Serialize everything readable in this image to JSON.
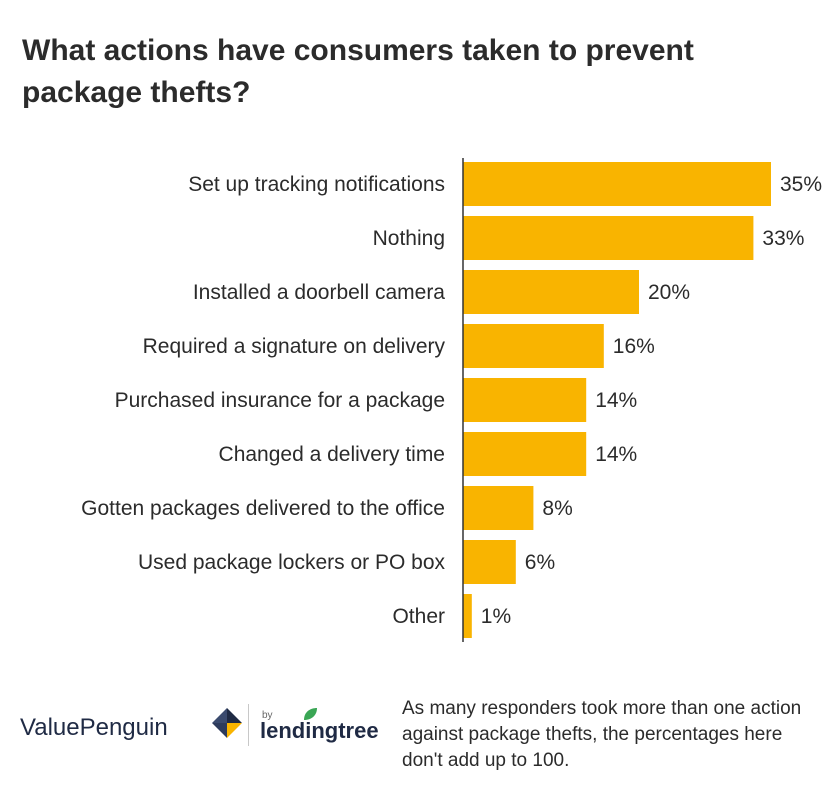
{
  "title": "What actions have consumers taken to prevent package thefts?",
  "note": "As many responders took more than one action against package thefts, the percentages here don't add up to 100.",
  "logo": {
    "valuepenguin": "ValuePenguin",
    "by": "by",
    "lendingtree": "lendingtree"
  },
  "colors": {
    "bar": "#F9B400",
    "axis": "#333333",
    "text": "#2b2b2b"
  },
  "chart_data": {
    "type": "bar",
    "orientation": "horizontal",
    "title": "What actions have consumers taken to prevent package thefts?",
    "categories": [
      "Set up tracking notifications",
      "Nothing",
      "Installed a doorbell camera",
      "Required a signature on delivery",
      "Purchased insurance for a package",
      "Changed a delivery time",
      "Gotten packages delivered to the office",
      "Used package lockers or PO box",
      "Other"
    ],
    "values": [
      35,
      33,
      20,
      16,
      14,
      14,
      8,
      6,
      1
    ],
    "value_labels": [
      "35%",
      "33%",
      "20%",
      "16%",
      "14%",
      "14%",
      "8%",
      "6%",
      "1%"
    ],
    "unit": "%",
    "xlim": [
      0,
      35
    ],
    "grid": false,
    "legend": "none"
  }
}
